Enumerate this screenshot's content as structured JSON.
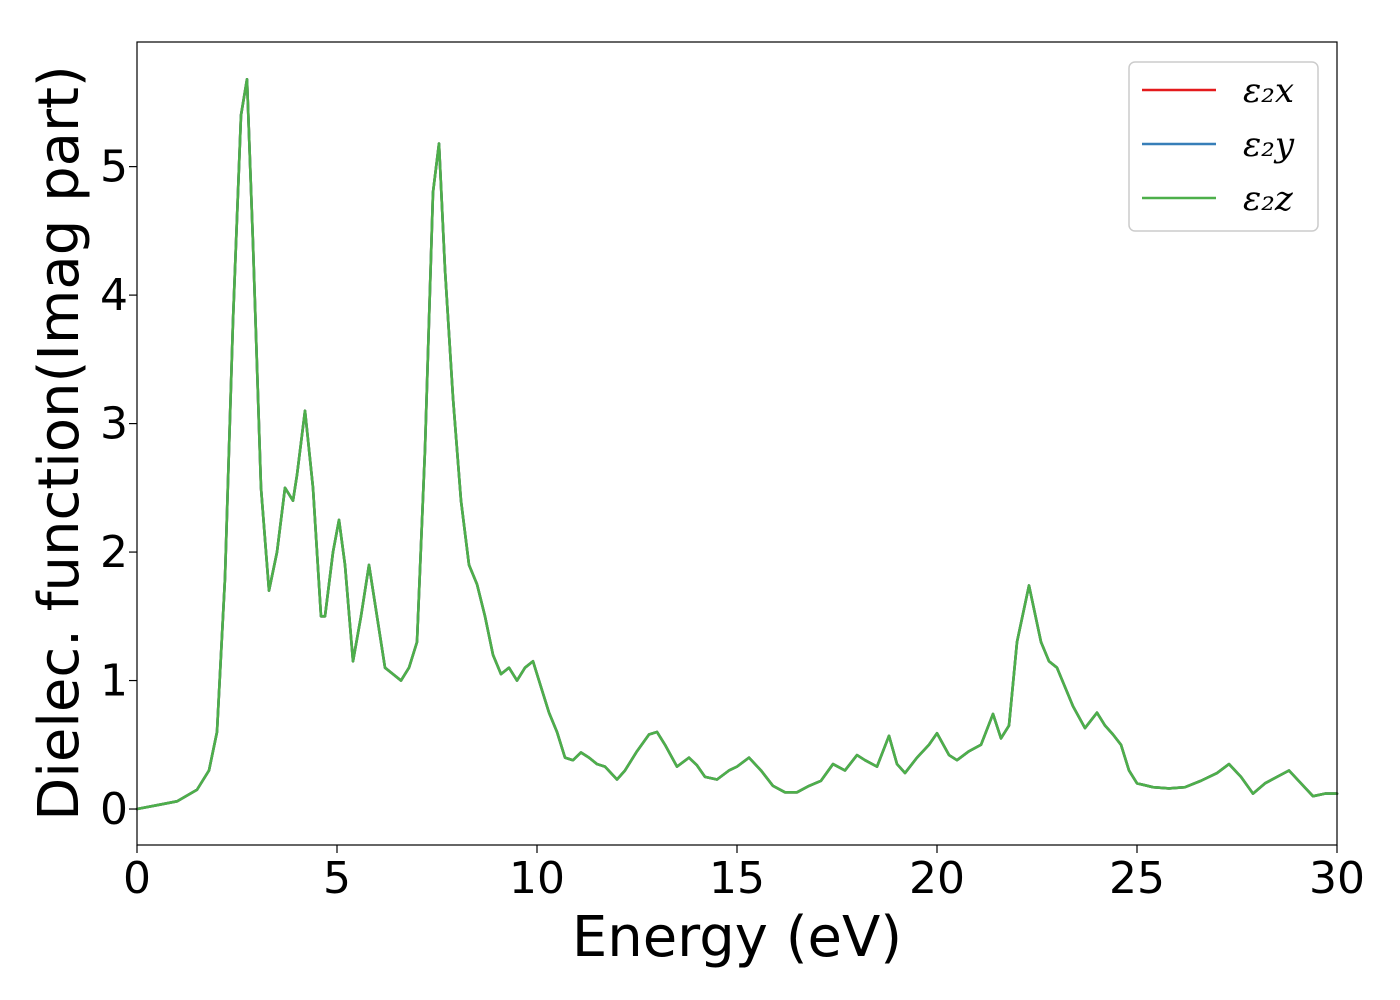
{
  "chart_data": {
    "type": "line",
    "xlabel": "Energy (eV)",
    "ylabel": "Dielec. function(Imag part)",
    "xlim": [
      0,
      30
    ],
    "ylim": [
      -0.28,
      5.97
    ],
    "xticks": [
      0,
      5,
      10,
      15,
      20,
      25,
      30
    ],
    "xtick_labels": [
      "0",
      "5",
      "10",
      "15",
      "20",
      "25",
      "30"
    ],
    "yticks": [
      0,
      1,
      2,
      3,
      4,
      5
    ],
    "ytick_labels": [
      "0",
      "1",
      "2",
      "3",
      "4",
      "5"
    ],
    "grid": false,
    "legend_position": "top-right",
    "x": [
      0,
      0.5,
      1,
      1.5,
      1.8,
      2,
      2.2,
      2.4,
      2.6,
      2.75,
      2.9,
      3.1,
      3.3,
      3.5,
      3.7,
      3.9,
      4.0,
      4.2,
      4.4,
      4.6,
      4.7,
      4.9,
      5.05,
      5.2,
      5.4,
      5.6,
      5.8,
      6.0,
      6.2,
      6.4,
      6.6,
      6.8,
      7.0,
      7.2,
      7.4,
      7.55,
      7.7,
      7.9,
      8.1,
      8.3,
      8.5,
      8.7,
      8.9,
      9.1,
      9.3,
      9.5,
      9.7,
      9.9,
      10.1,
      10.3,
      10.5,
      10.7,
      10.9,
      11.1,
      11.3,
      11.5,
      11.7,
      12.0,
      12.2,
      12.5,
      12.8,
      13.0,
      13.2,
      13.5,
      13.8,
      14.0,
      14.2,
      14.5,
      14.8,
      15.0,
      15.3,
      15.6,
      15.9,
      16.2,
      16.5,
      16.8,
      17.1,
      17.4,
      17.7,
      18.0,
      18.2,
      18.5,
      18.8,
      19.0,
      19.2,
      19.5,
      19.8,
      20.0,
      20.3,
      20.5,
      20.8,
      21.1,
      21.4,
      21.6,
      21.8,
      22.0,
      22.3,
      22.6,
      22.8,
      23.0,
      23.2,
      23.4,
      23.7,
      24.0,
      24.2,
      24.4,
      24.6,
      24.8,
      25.0,
      25.4,
      25.8,
      26.2,
      26.6,
      27.0,
      27.3,
      27.6,
      27.9,
      28.2,
      28.5,
      28.8,
      29.1,
      29.4,
      29.7,
      30.0
    ],
    "series": [
      {
        "name": "ε₂x",
        "color": "#e41a1c",
        "values": [
          0.0,
          0.03,
          0.06,
          0.15,
          0.3,
          0.6,
          1.8,
          3.8,
          5.4,
          5.68,
          4.4,
          2.5,
          1.7,
          2.0,
          2.5,
          2.4,
          2.6,
          3.1,
          2.5,
          1.5,
          1.5,
          2.0,
          2.25,
          1.9,
          1.15,
          1.5,
          1.9,
          1.5,
          1.1,
          1.05,
          1.0,
          1.1,
          1.3,
          2.8,
          4.8,
          5.18,
          4.2,
          3.2,
          2.4,
          1.9,
          1.75,
          1.5,
          1.2,
          1.05,
          1.1,
          1.0,
          1.1,
          1.15,
          0.95,
          0.75,
          0.6,
          0.4,
          0.38,
          0.44,
          0.4,
          0.35,
          0.33,
          0.23,
          0.3,
          0.45,
          0.58,
          0.6,
          0.5,
          0.33,
          0.4,
          0.34,
          0.25,
          0.23,
          0.3,
          0.33,
          0.4,
          0.3,
          0.18,
          0.13,
          0.13,
          0.18,
          0.22,
          0.35,
          0.3,
          0.42,
          0.38,
          0.33,
          0.57,
          0.35,
          0.28,
          0.4,
          0.5,
          0.59,
          0.42,
          0.38,
          0.45,
          0.5,
          0.74,
          0.55,
          0.65,
          1.3,
          1.74,
          1.3,
          1.15,
          1.1,
          0.95,
          0.8,
          0.63,
          0.75,
          0.65,
          0.58,
          0.5,
          0.3,
          0.2,
          0.17,
          0.16,
          0.17,
          0.22,
          0.28,
          0.35,
          0.25,
          0.12,
          0.2,
          0.25,
          0.3,
          0.2,
          0.1,
          0.12,
          0.12
        ]
      },
      {
        "name": "ε₂y",
        "color": "#377eb8",
        "values": [
          0.0,
          0.03,
          0.06,
          0.15,
          0.3,
          0.6,
          1.8,
          3.8,
          5.4,
          5.68,
          4.4,
          2.5,
          1.7,
          2.0,
          2.5,
          2.4,
          2.6,
          3.1,
          2.5,
          1.5,
          1.5,
          2.0,
          2.25,
          1.9,
          1.15,
          1.5,
          1.9,
          1.5,
          1.1,
          1.05,
          1.0,
          1.1,
          1.3,
          2.8,
          4.8,
          5.18,
          4.2,
          3.2,
          2.4,
          1.9,
          1.75,
          1.5,
          1.2,
          1.05,
          1.1,
          1.0,
          1.1,
          1.15,
          0.95,
          0.75,
          0.6,
          0.4,
          0.38,
          0.44,
          0.4,
          0.35,
          0.33,
          0.23,
          0.3,
          0.45,
          0.58,
          0.6,
          0.5,
          0.33,
          0.4,
          0.34,
          0.25,
          0.23,
          0.3,
          0.33,
          0.4,
          0.3,
          0.18,
          0.13,
          0.13,
          0.18,
          0.22,
          0.35,
          0.3,
          0.42,
          0.38,
          0.33,
          0.57,
          0.35,
          0.28,
          0.4,
          0.5,
          0.59,
          0.42,
          0.38,
          0.45,
          0.5,
          0.74,
          0.55,
          0.65,
          1.3,
          1.74,
          1.3,
          1.15,
          1.1,
          0.95,
          0.8,
          0.63,
          0.75,
          0.65,
          0.58,
          0.5,
          0.3,
          0.2,
          0.17,
          0.16,
          0.17,
          0.22,
          0.28,
          0.35,
          0.25,
          0.12,
          0.2,
          0.25,
          0.3,
          0.2,
          0.1,
          0.12,
          0.12
        ]
      },
      {
        "name": "ε₂z",
        "color": "#4daf4a",
        "values": [
          0.0,
          0.03,
          0.06,
          0.15,
          0.3,
          0.6,
          1.8,
          3.8,
          5.4,
          5.68,
          4.4,
          2.5,
          1.7,
          2.0,
          2.5,
          2.4,
          2.6,
          3.1,
          2.5,
          1.5,
          1.5,
          2.0,
          2.25,
          1.9,
          1.15,
          1.5,
          1.9,
          1.5,
          1.1,
          1.05,
          1.0,
          1.1,
          1.3,
          2.8,
          4.8,
          5.18,
          4.2,
          3.2,
          2.4,
          1.9,
          1.75,
          1.5,
          1.2,
          1.05,
          1.1,
          1.0,
          1.1,
          1.15,
          0.95,
          0.75,
          0.6,
          0.4,
          0.38,
          0.44,
          0.4,
          0.35,
          0.33,
          0.23,
          0.3,
          0.45,
          0.58,
          0.6,
          0.5,
          0.33,
          0.4,
          0.34,
          0.25,
          0.23,
          0.3,
          0.33,
          0.4,
          0.3,
          0.18,
          0.13,
          0.13,
          0.18,
          0.22,
          0.35,
          0.3,
          0.42,
          0.38,
          0.33,
          0.57,
          0.35,
          0.28,
          0.4,
          0.5,
          0.59,
          0.42,
          0.38,
          0.45,
          0.5,
          0.74,
          0.55,
          0.65,
          1.3,
          1.74,
          1.3,
          1.15,
          1.1,
          0.95,
          0.8,
          0.63,
          0.75,
          0.65,
          0.58,
          0.5,
          0.3,
          0.2,
          0.17,
          0.16,
          0.17,
          0.22,
          0.28,
          0.35,
          0.25,
          0.12,
          0.2,
          0.25,
          0.3,
          0.2,
          0.1,
          0.12,
          0.12
        ]
      }
    ]
  }
}
